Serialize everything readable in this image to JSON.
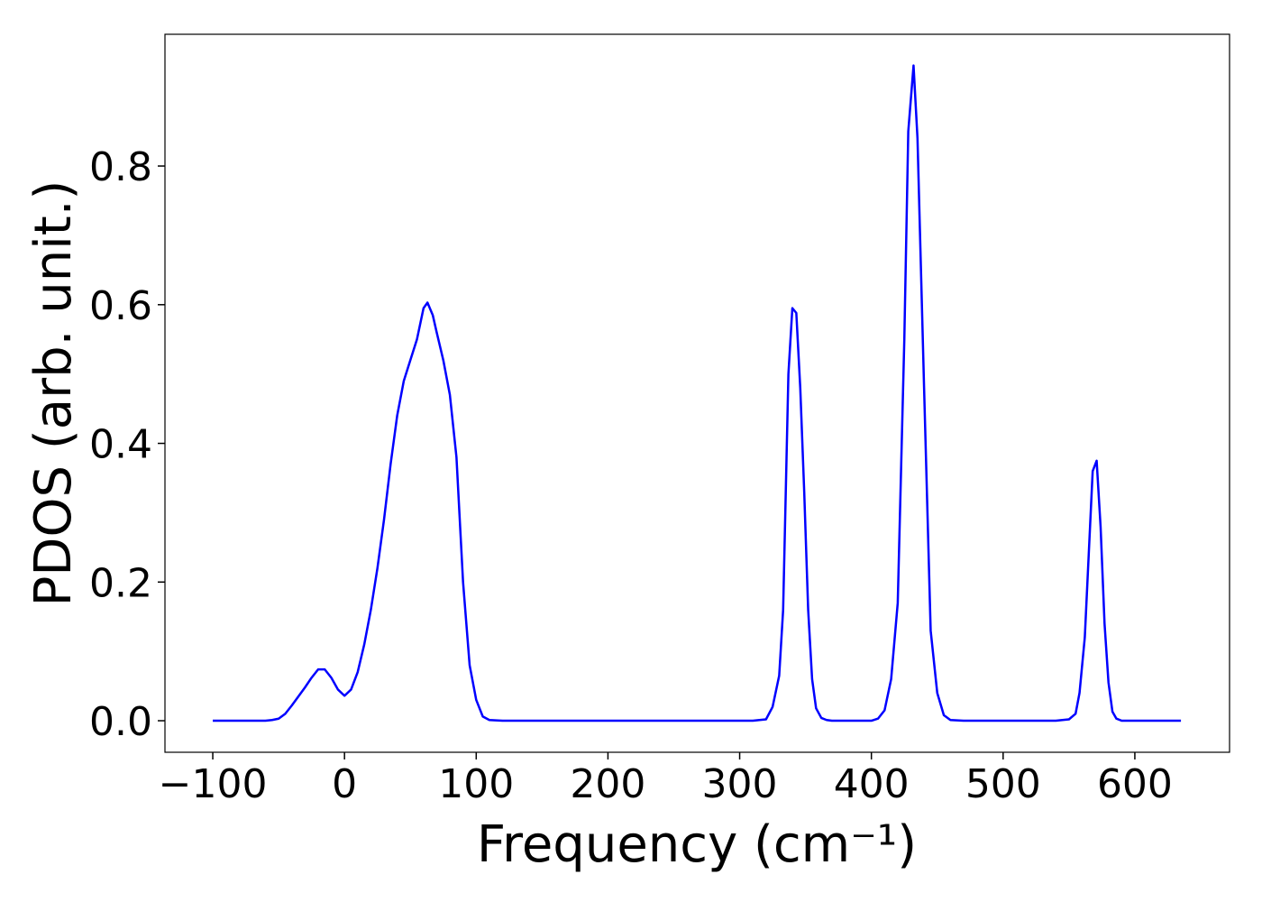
{
  "chart_data": {
    "type": "line",
    "x_label": "Frequency (cm⁻¹)",
    "y_label": "PDOS (arb. unit.)",
    "x": [
      -100,
      -90,
      -80,
      -70,
      -60,
      -55,
      -50,
      -45,
      -40,
      -35,
      -30,
      -25,
      -20,
      -15,
      -10,
      -5,
      0,
      5,
      10,
      15,
      20,
      25,
      30,
      35,
      40,
      45,
      50,
      55,
      60,
      63,
      67,
      70,
      75,
      80,
      85,
      90,
      95,
      100,
      105,
      110,
      120,
      130,
      140,
      150,
      160,
      170,
      180,
      190,
      200,
      210,
      220,
      230,
      240,
      250,
      260,
      270,
      280,
      290,
      300,
      310,
      320,
      325,
      330,
      333,
      337,
      340,
      343,
      346,
      349,
      352,
      355,
      358,
      362,
      366,
      370,
      380,
      390,
      400,
      405,
      410,
      415,
      420,
      425,
      428,
      432,
      435,
      440,
      445,
      450,
      455,
      460,
      470,
      480,
      490,
      500,
      510,
      520,
      530,
      540,
      550,
      555,
      558,
      562,
      565,
      568,
      571,
      574,
      577,
      580,
      583,
      586,
      590,
      600,
      610,
      620,
      630,
      635
    ],
    "series": [
      {
        "name": "PDOS",
        "color": "#0000ff",
        "values": [
          0,
          0,
          0,
          0,
          0,
          0.001,
          0.003,
          0.01,
          0.022,
          0.035,
          0.048,
          0.062,
          0.074,
          0.074,
          0.062,
          0.045,
          0.036,
          0.045,
          0.07,
          0.11,
          0.16,
          0.22,
          0.29,
          0.37,
          0.44,
          0.49,
          0.52,
          0.55,
          0.595,
          0.603,
          0.585,
          0.56,
          0.52,
          0.47,
          0.38,
          0.2,
          0.08,
          0.03,
          0.006,
          0.001,
          0,
          0,
          0,
          0,
          0,
          0,
          0,
          0,
          0,
          0,
          0,
          0,
          0,
          0,
          0,
          0,
          0,
          0,
          0,
          0,
          0.002,
          0.02,
          0.065,
          0.16,
          0.5,
          0.595,
          0.588,
          0.48,
          0.33,
          0.16,
          0.06,
          0.018,
          0.004,
          0.001,
          0,
          0,
          0,
          0,
          0.003,
          0.015,
          0.06,
          0.17,
          0.55,
          0.85,
          0.945,
          0.84,
          0.48,
          0.13,
          0.04,
          0.008,
          0.001,
          0,
          0,
          0,
          0,
          0,
          0,
          0,
          0,
          0.002,
          0.01,
          0.04,
          0.12,
          0.24,
          0.36,
          0.375,
          0.28,
          0.14,
          0.055,
          0.013,
          0.003,
          0,
          0,
          0,
          0,
          0,
          0
        ]
      }
    ],
    "xlim": [
      -136.3,
      671.9
    ],
    "ylim": [
      -0.0455,
      0.99
    ],
    "xticks": [
      {
        "value": -100,
        "label": "−100"
      },
      0,
      100,
      200,
      300,
      400,
      500,
      600
    ],
    "yticks": [
      {
        "value": 0,
        "label": "0.0"
      },
      {
        "value": 0.2,
        "label": "0.2"
      },
      {
        "value": 0.4,
        "label": "0.4"
      },
      {
        "value": 0.6,
        "label": "0.6"
      },
      {
        "value": 0.8,
        "label": "0.8"
      }
    ]
  }
}
